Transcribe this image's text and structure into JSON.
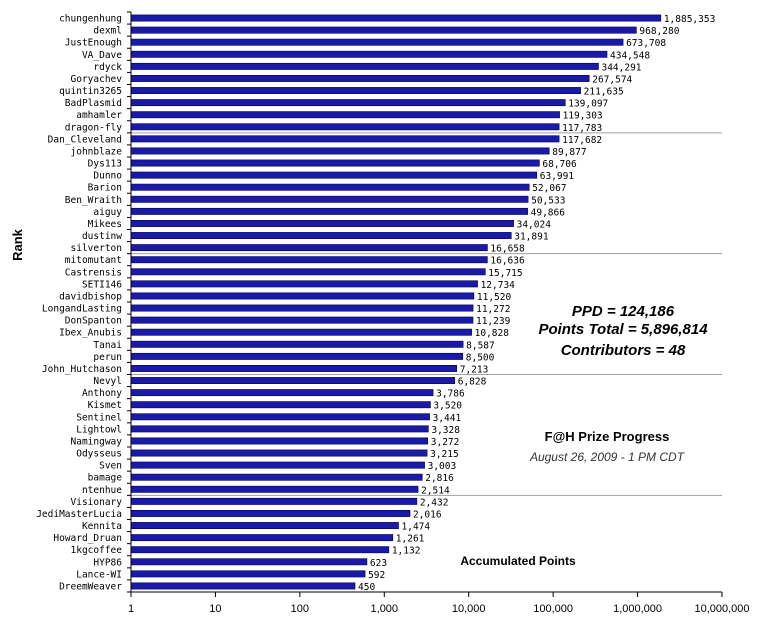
{
  "chart_data": {
    "type": "bar",
    "orientation": "horizontal",
    "scale": "log",
    "ylabel": "Rank",
    "xlabel": "Accumulated Points",
    "xlim": [
      1,
      10000000
    ],
    "xticks": [
      "1",
      "10",
      "100",
      "1,000",
      "10,000",
      "100,000",
      "1,000,000",
      "10,000,000"
    ],
    "bar_color": "#1a1aa6",
    "gridlines": "every 10 rows",
    "categories": [
      "chungenhung",
      "dexml",
      "JustEnough",
      "VA_Dave",
      "rdyck",
      "Goryachev",
      "quintin3265",
      "BadPlasmid",
      "amhamler",
      "dragon-fly",
      "Dan_Cleveland",
      "johnblaze",
      "Dys113",
      "Dunno",
      "Barion",
      "Ben_Wraith",
      "aiguy",
      "Mikees",
      "dustinw",
      "silverton",
      "mitomutant",
      "Castrensis",
      "SETI146",
      "davidbishop",
      "LongandLasting",
      "DonSpanton",
      "Ibex_Anubis",
      "Tanai",
      "perun",
      "John_Hutchason",
      "Nevyl",
      "Anthony",
      "Kismet",
      "Sentinel",
      "Lightowl",
      "Namingway",
      "Odysseus",
      "Sven",
      "bamage",
      "ntenhue",
      "Visionary",
      "JediMasterLucia",
      "Kennita",
      "Howard_Druan",
      "1kgcoffee",
      "HYP86",
      "Lance-WI",
      "DreemWeaver"
    ],
    "values": [
      1885353,
      968280,
      673708,
      434548,
      344291,
      267574,
      211635,
      139097,
      119303,
      117783,
      117682,
      89877,
      68706,
      63991,
      52067,
      50533,
      49866,
      34024,
      31891,
      16658,
      16636,
      15715,
      12734,
      11520,
      11272,
      11239,
      10828,
      8587,
      8500,
      7213,
      6828,
      3786,
      3520,
      3441,
      3328,
      3272,
      3215,
      3003,
      2816,
      2514,
      2432,
      2016,
      1474,
      1261,
      1132,
      623,
      592,
      450
    ],
    "value_labels": [
      "1,885,353",
      "968,280",
      "673,708",
      "434,548",
      "344,291",
      "267,574",
      "211,635",
      "139,097",
      "119,303",
      "117,783",
      "117,682",
      "89,877",
      "68,706",
      "63,991",
      "52,067",
      "50,533",
      "49,866",
      "34,024",
      "31,891",
      "16,658",
      "16,636",
      "15,715",
      "12,734",
      "11,520",
      "11,272",
      "11,239",
      "10,828",
      "8,587",
      "8,500",
      "7,213",
      "6,828",
      "3,786",
      "3,520",
      "3,441",
      "3,328",
      "3,272",
      "3,215",
      "3,003",
      "2,816",
      "2,514",
      "2,432",
      "2,016",
      "1,474",
      "1,261",
      "1,132",
      "623",
      "592",
      "450"
    ]
  },
  "annotations": {
    "ppd": "PPD = 124,186",
    "points_total": "Points Total = 5,896,814",
    "contributors": "Contributors = 48",
    "progress_title": "F@H Prize Progress",
    "progress_date": "August  26, 2009 - 1 PM CDT"
  }
}
